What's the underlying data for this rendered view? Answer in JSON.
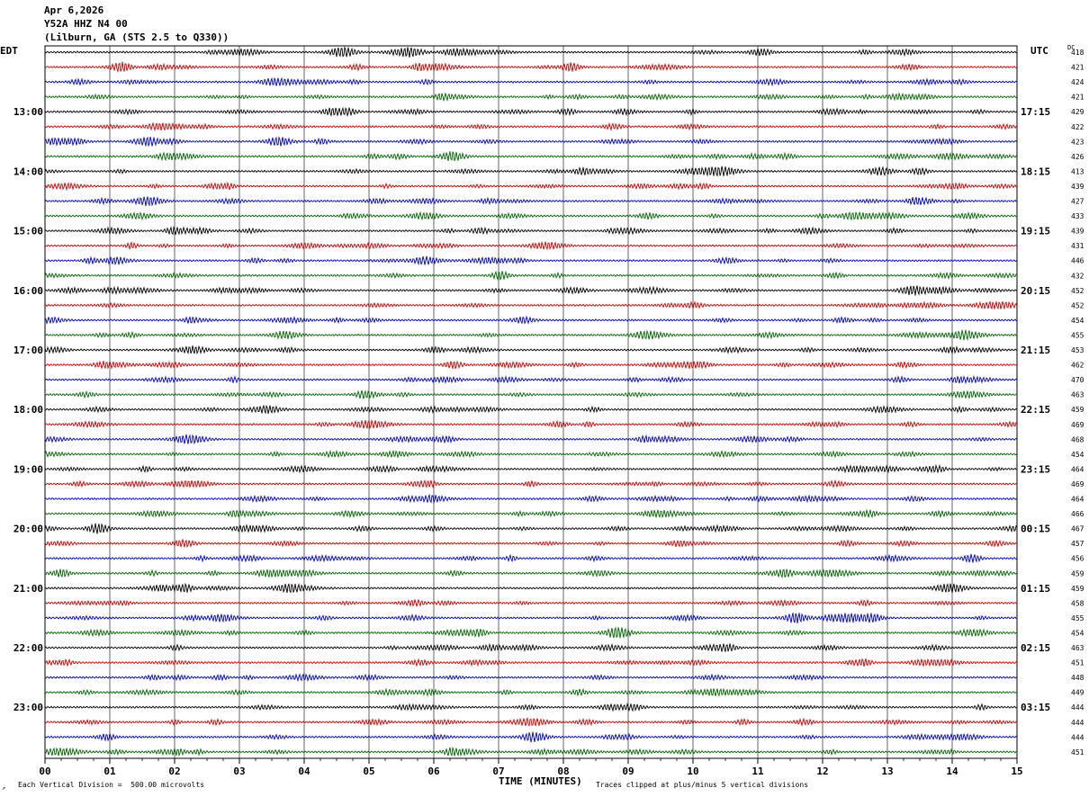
{
  "header": {
    "date": "Apr 6,2026",
    "station": "Y52A HHZ N4 00",
    "location": "(Lilburn, GA (STS 2.5 to Q330))"
  },
  "left_tz": "EDT",
  "right_tz": "UTC",
  "dc_label": "DC",
  "footer": {
    "scale_note": "Each Vertical Division =  500.00 microvolts",
    "clip_note": "Traces clipped at plus/minus 5 vertical divisions",
    "corner_mark": "↗"
  },
  "colors": {
    "trace_cycle": [
      "#000000",
      "#d00000",
      "#0000c8",
      "#006400"
    ],
    "grid": "#000000",
    "background": "#ffffff"
  },
  "chart_data": {
    "type": "line",
    "subtype": "helicorder",
    "xlabel": "TIME (MINUTES)",
    "x_ticks": [
      "00",
      "01",
      "02",
      "03",
      "04",
      "05",
      "06",
      "07",
      "08",
      "09",
      "10",
      "11",
      "12",
      "13",
      "14",
      "15"
    ],
    "xlim": [
      0,
      15
    ],
    "minutes_per_line": 15,
    "left_hour_labels": [
      "13:00",
      "14:00",
      "15:00",
      "16:00",
      "17:00",
      "18:00",
      "19:00",
      "20:00",
      "21:00",
      "22:00",
      "23:00"
    ],
    "right_hour_labels": [
      "17:15",
      "18:15",
      "19:15",
      "20:15",
      "21:15",
      "22:15",
      "23:15",
      "00:15",
      "01:15",
      "02:15",
      "03:15"
    ],
    "hour_label_rows": [
      4,
      8,
      12,
      16,
      20,
      24,
      28,
      32,
      36,
      40,
      44
    ],
    "trace_count": 48,
    "dc_offsets": [
      418,
      421,
      424,
      421,
      429,
      422,
      423,
      426,
      413,
      439,
      427,
      433,
      439,
      431,
      446,
      432,
      452,
      452,
      454,
      455,
      453,
      462,
      470,
      463,
      459,
      469,
      468,
      454,
      464,
      469,
      464,
      466,
      467,
      457,
      456,
      459,
      459,
      458,
      455,
      454,
      463,
      451,
      448,
      449,
      444,
      444,
      444,
      451
    ],
    "events": [
      {
        "trace": 1,
        "minute": 1.2,
        "amplitude": 2.0
      },
      {
        "trace": 8,
        "minute": 8.3,
        "amplitude": 2.2
      },
      {
        "trace": 8,
        "minute": 13.5,
        "amplitude": 2.0
      },
      {
        "trace": 21,
        "minute": 6.3,
        "amplitude": 2.2
      },
      {
        "trace": 34,
        "minute": 14.3,
        "amplitude": 2.6
      }
    ]
  }
}
